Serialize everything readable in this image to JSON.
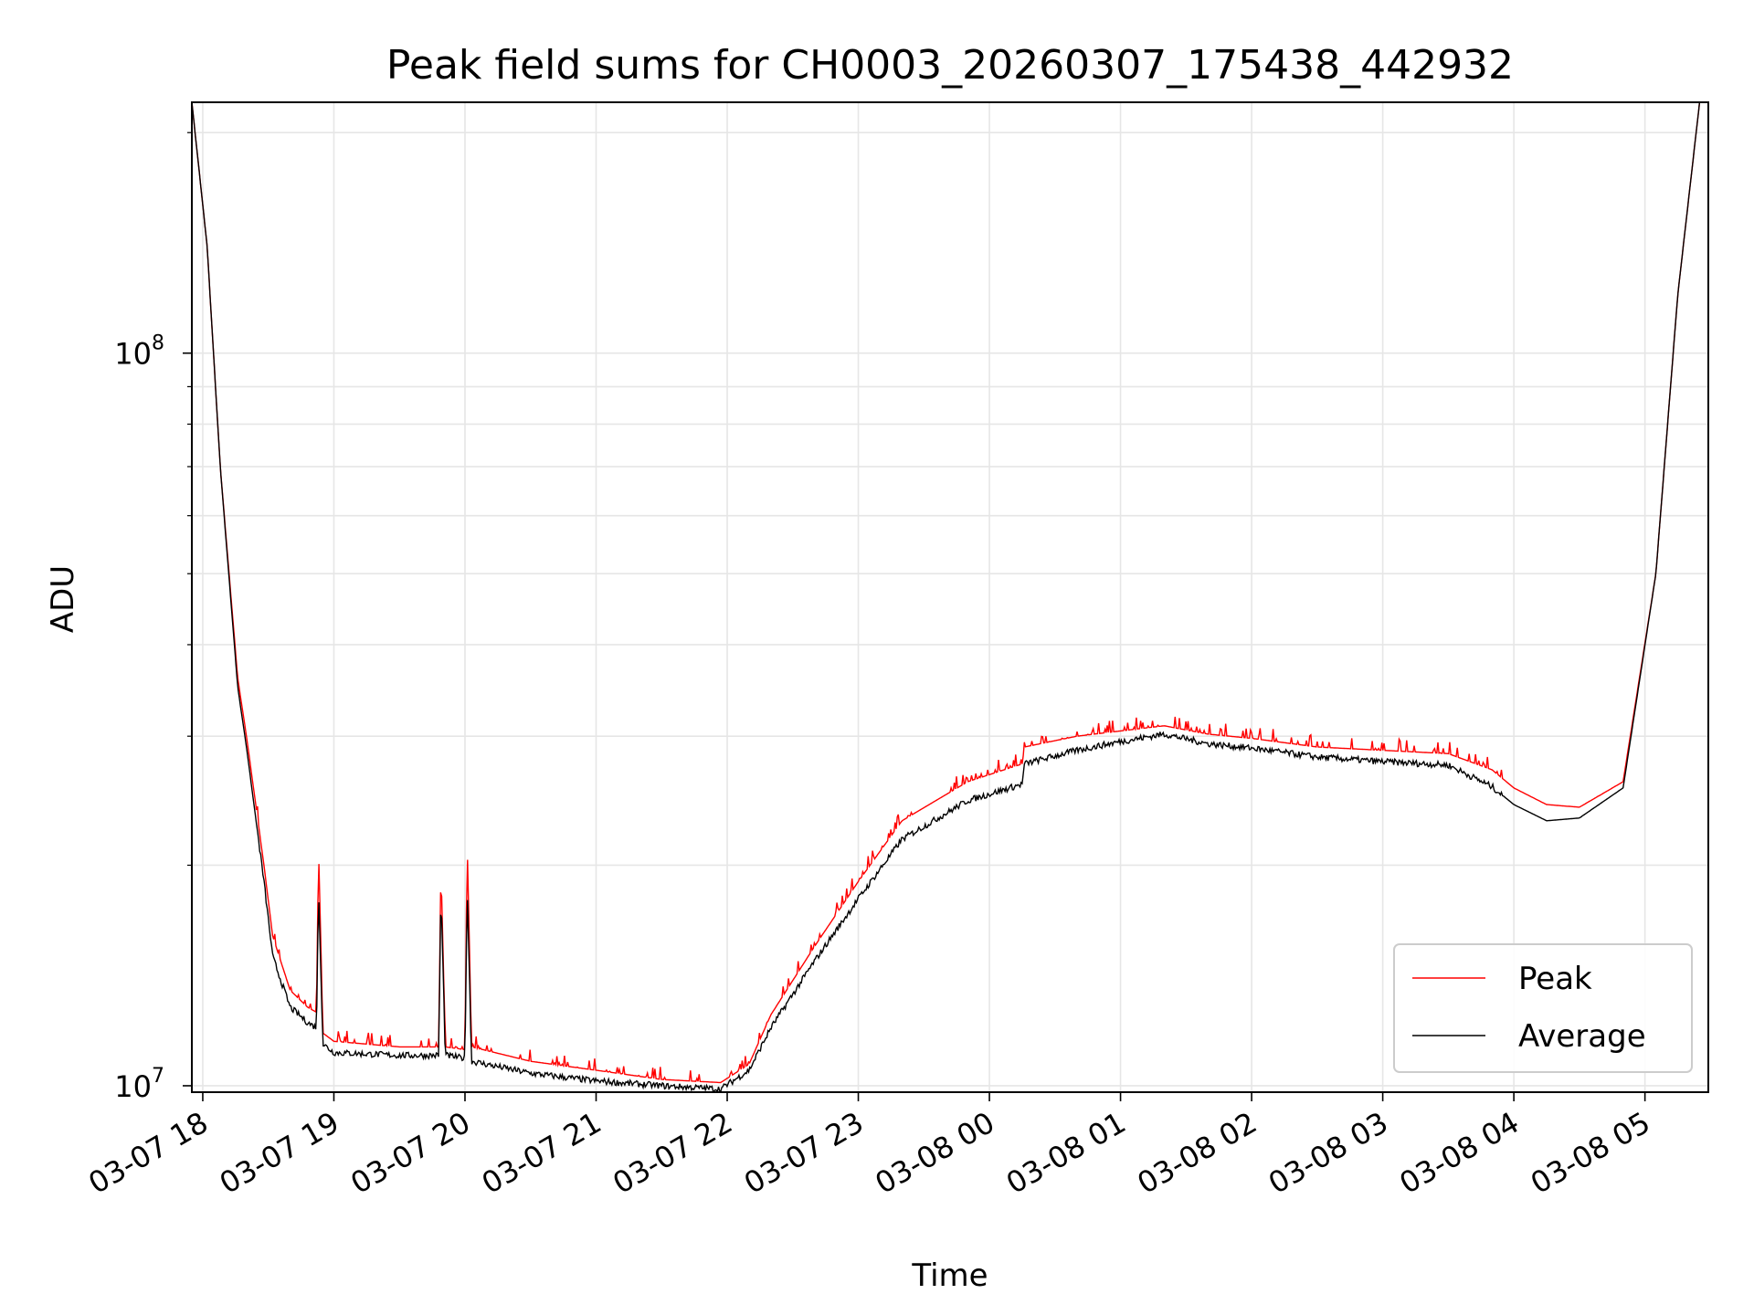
{
  "chart_data": {
    "type": "line",
    "title": "Peak field sums for CH0003_20260307_175438_442932",
    "xlabel": "Time",
    "ylabel": "ADU",
    "y_scale": "log",
    "ylim": [
      9800000,
      220000000
    ],
    "xlim": [
      "2026-03-07 17:55",
      "2026-03-08 05:29"
    ],
    "grid": true,
    "legend_position": "lower right",
    "x_ticks": [
      "03-07 18",
      "03-07 19",
      "03-07 20",
      "03-07 21",
      "03-07 22",
      "03-07 23",
      "03-08 00",
      "03-08 01",
      "03-08 02",
      "03-08 03",
      "03-08 04",
      "03-08 05"
    ],
    "y_ticks": [
      {
        "value": 10000000,
        "base": "10",
        "exp": "7"
      },
      {
        "value": 100000000,
        "base": "10",
        "exp": "8"
      }
    ],
    "x": [
      "2026-03-07 17:55",
      "2026-03-07 18:02",
      "2026-03-07 18:08",
      "2026-03-07 18:16",
      "2026-03-07 18:20",
      "2026-03-07 18:28",
      "2026-03-07 18:32",
      "2026-03-07 18:40",
      "2026-03-07 18:48",
      "2026-03-07 18:52",
      "2026-03-07 18:53",
      "2026-03-07 18:55",
      "2026-03-07 19:00",
      "2026-03-07 19:30",
      "2026-03-07 19:48",
      "2026-03-07 19:49",
      "2026-03-07 19:51",
      "2026-03-07 20:00",
      "2026-03-07 20:01",
      "2026-03-07 20:03",
      "2026-03-07 20:30",
      "2026-03-07 21:00",
      "2026-03-07 21:30",
      "2026-03-07 21:57",
      "2026-03-07 22:10",
      "2026-03-07 22:20",
      "2026-03-07 22:40",
      "2026-03-07 23:00",
      "2026-03-07 23:20",
      "2026-03-07 23:50",
      "2026-03-08 00:15",
      "2026-03-08 00:16",
      "2026-03-08 00:40",
      "2026-03-08 01:00",
      "2026-03-08 01:20",
      "2026-03-08 01:40",
      "2026-03-08 02:00",
      "2026-03-08 02:30",
      "2026-03-08 03:00",
      "2026-03-08 03:30",
      "2026-03-08 03:50",
      "2026-03-08 04:00",
      "2026-03-08 04:15",
      "2026-03-08 04:30",
      "2026-03-08 04:50",
      "2026-03-08 05:05",
      "2026-03-08 05:15",
      "2026-03-08 05:25"
    ],
    "series": [
      {
        "name": "Peak",
        "color": "#ff0000",
        "values": [
          220000000,
          140000000,
          70000000,
          36000000,
          30000000,
          20000000,
          16000000,
          13500000,
          12800000,
          12600000,
          21000000,
          11800000,
          11500000,
          11300000,
          11300000,
          20000000,
          11300000,
          11200000,
          21500000,
          11300000,
          10800000,
          10500000,
          10200000,
          10100000,
          10700000,
          12500000,
          15500000,
          19000000,
          23000000,
          26000000,
          27500000,
          29000000,
          30000000,
          30500000,
          31000000,
          30200000,
          29800000,
          29000000,
          28700000,
          28400000,
          27000000,
          25500000,
          24200000,
          24000000,
          26000000,
          50000000,
          120000000,
          220000000
        ]
      },
      {
        "name": "Average",
        "color": "#000000",
        "values": [
          220000000,
          140000000,
          70000000,
          35000000,
          29000000,
          19000000,
          15000000,
          12800000,
          12200000,
          12000000,
          18500000,
          11400000,
          11100000,
          11000000,
          11000000,
          18500000,
          11000000,
          10900000,
          18800000,
          10800000,
          10400000,
          10150000,
          10000000,
          9900000,
          10500000,
          12000000,
          14800000,
          18000000,
          21700000,
          24500000,
          25800000,
          27500000,
          28700000,
          29500000,
          30200000,
          29300000,
          28900000,
          28100000,
          27700000,
          27400000,
          25600000,
          24200000,
          23000000,
          23200000,
          25500000,
          50000000,
          120000000,
          220000000
        ]
      }
    ]
  }
}
